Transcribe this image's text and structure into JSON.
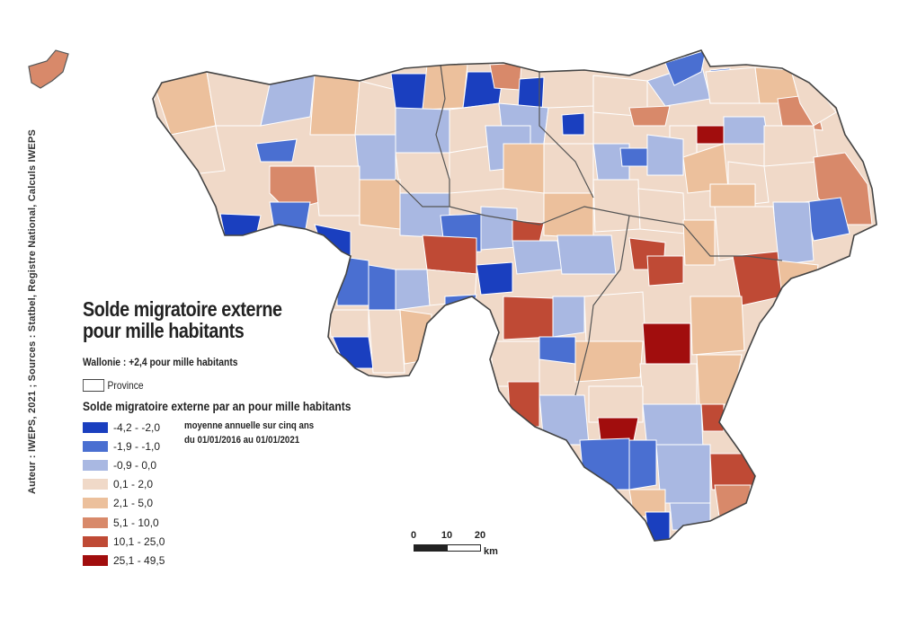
{
  "map": {
    "title_line1": "Solde migratoire externe",
    "title_line2": "pour mille habitants",
    "subtitle": "Wallonie : +2,4 pour mille habitants",
    "province_label": "Province",
    "legend_title": "Solde migratoire externe par an pour mille habitants",
    "note_line1": "moyenne annuelle sur cinq ans",
    "note_line2": "du 01/01/2016 au 01/01/2021",
    "credit": "Auteur : IWEPS, 2021 ; Sources : Statbel, Registre National, Calculs IWEPS",
    "legend": [
      {
        "label": "-4,2 - -2,0",
        "color": "#1a3fbf"
      },
      {
        "label": "-1,9 - -1,0",
        "color": "#4a6fd1"
      },
      {
        "label": "-0,9 - 0,0",
        "color": "#a9b8e2"
      },
      {
        "label": "0,1 - 2,0",
        "color": "#f0d9c8"
      },
      {
        "label": "2,1 - 5,0",
        "color": "#ecc09c"
      },
      {
        "label": "5,1 - 10,0",
        "color": "#d8896a"
      },
      {
        "label": "10,1 - 25,0",
        "color": "#bf4a35"
      },
      {
        "label": "25,1 - 49,5",
        "color": "#a10d0d"
      }
    ],
    "scale": {
      "ticks": [
        "0",
        "10",
        "20"
      ],
      "unit": "km"
    }
  }
}
